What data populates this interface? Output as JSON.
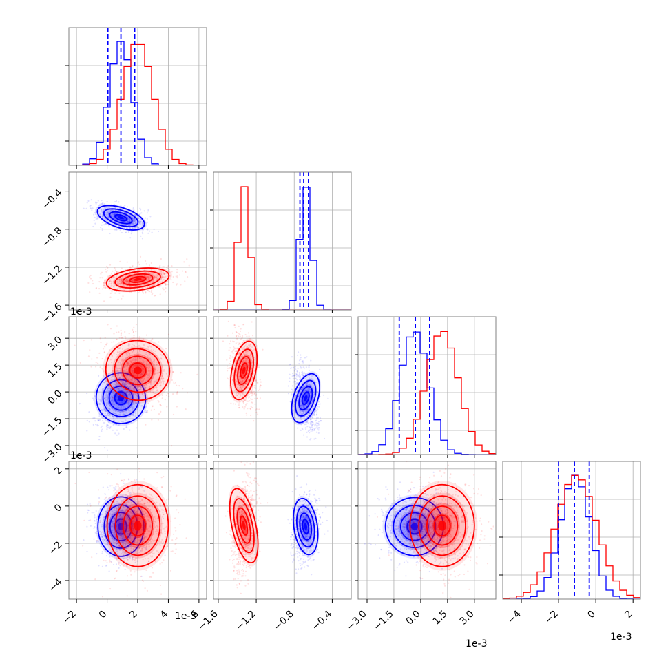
{
  "colors": {
    "series_a": "#0000ff",
    "series_b": "#ff0000",
    "grid": "#b0b0b0",
    "frame": "#808080"
  },
  "offset_labels": {
    "x1": "1e-3",
    "x2": "1e-3",
    "x3": "1e-3",
    "x4": "1e-3",
    "y1": "1e-3",
    "y2": "1e-3"
  },
  "chart_data": {
    "type": "corner",
    "parameters": [
      {
        "ticks": [
          -2,
          0,
          2,
          4,
          6
        ],
        "tick_labels": [
          "−2",
          "0",
          "2",
          "4",
          "6"
        ],
        "range": [
          -2.5,
          6.5
        ],
        "offset": "1e-3"
      },
      {
        "ticks": [
          -1.6,
          -1.2,
          -0.8,
          -0.4
        ],
        "tick_labels": [
          "−1.6",
          "−1.2",
          "−0.8",
          "−0.4"
        ],
        "range": [
          -1.65,
          -0.2
        ],
        "offset": "1e-3"
      },
      {
        "ticks": [
          -3.0,
          -1.5,
          0.0,
          1.5,
          3.0
        ],
        "tick_labels": [
          "−3.0",
          "−1.5",
          "0.0",
          "1.5",
          "3.0"
        ],
        "range": [
          -3.5,
          4.2
        ],
        "offset": "1e-3"
      },
      {
        "ticks": [
          -4,
          -2,
          0,
          2
        ],
        "tick_labels": [
          "−4",
          "−2",
          "0",
          "2"
        ],
        "range": [
          -5.0,
          2.4
        ],
        "offset": "1e-3"
      }
    ],
    "series": [
      {
        "color": "#0000ff",
        "mean": [
          0.9,
          -0.68,
          -0.35,
          -1.1
        ],
        "sd": [
          0.75,
          0.06,
          0.8,
          0.8
        ],
        "quantiles": [
          [
            0.05,
            0.9,
            1.8
          ],
          [
            -0.74,
            -0.7,
            -0.65
          ],
          [
            -1.2,
            -0.3,
            0.5
          ],
          [
            -2.0,
            -1.15,
            -0.35
          ]
        ]
      },
      {
        "color": "#ff0000",
        "mean": [
          2.0,
          -1.33,
          1.2,
          -1.05
        ],
        "sd": [
          1.0,
          0.06,
          0.9,
          1.1
        ],
        "quantiles": []
      }
    ],
    "correlations": [
      {
        "pair": [
          0,
          1
        ],
        "series_a": -0.45,
        "series_b": 0.2
      },
      {
        "pair": [
          0,
          2
        ],
        "series_a": 0.45,
        "series_b": -0.3
      },
      {
        "pair": [
          0,
          3
        ],
        "series_a": 0.0,
        "series_b": 0.0
      },
      {
        "pair": [
          1,
          2
        ],
        "series_a": -0.45,
        "series_b": -0.3
      },
      {
        "pair": [
          1,
          3
        ],
        "series_a": 0.2,
        "series_b": 0.3
      },
      {
        "pair": [
          2,
          3
        ],
        "series_a": -0.1,
        "series_b": 0.0
      }
    ],
    "histogram_bins": 20,
    "grid": true,
    "legend": "none"
  }
}
